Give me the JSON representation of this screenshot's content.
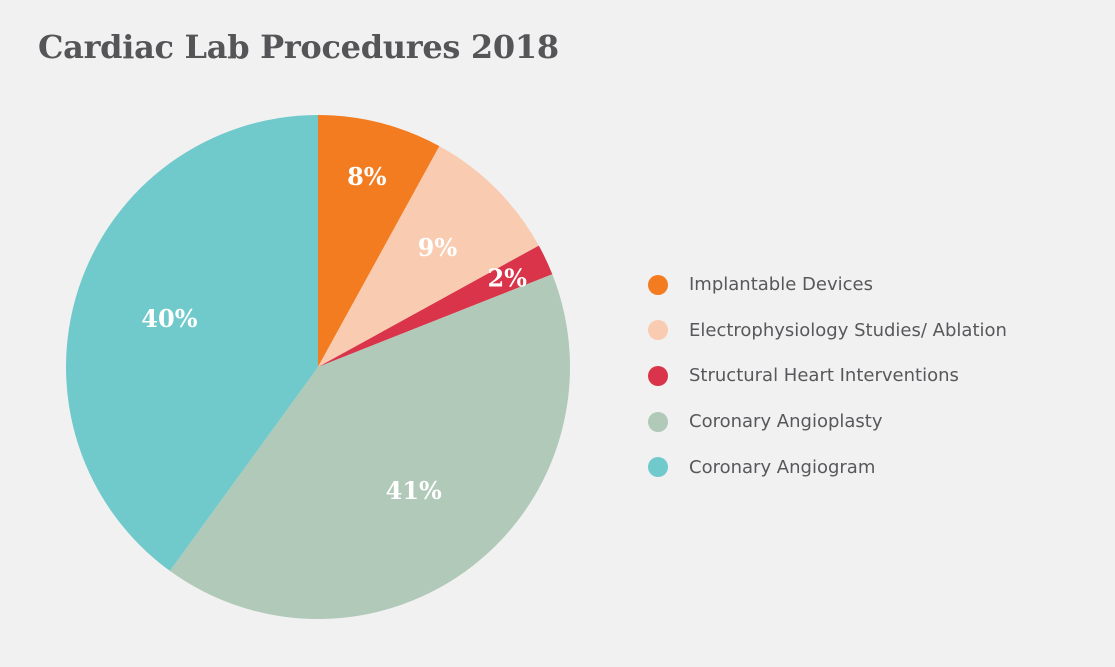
{
  "chart_data": {
    "type": "pie",
    "title": "Cardiac Lab Procedures 2018",
    "categories": [
      "Implantable Devices",
      "Electrophysiology Studies/ Ablation",
      "Structural Heart Interventions",
      "Coronary Angioplasty",
      "Coronary Angiogram"
    ],
    "values": [
      8,
      9,
      2,
      41,
      40
    ],
    "data_labels": [
      "8%",
      "9%",
      "2%",
      "41%",
      "40%"
    ],
    "colors": [
      "#f47c20",
      "#f9cbb0",
      "#d9344a",
      "#b0c9b8",
      "#70c9cb"
    ],
    "legend_position": "right",
    "start_angle": "top",
    "direction": "clockwise"
  }
}
